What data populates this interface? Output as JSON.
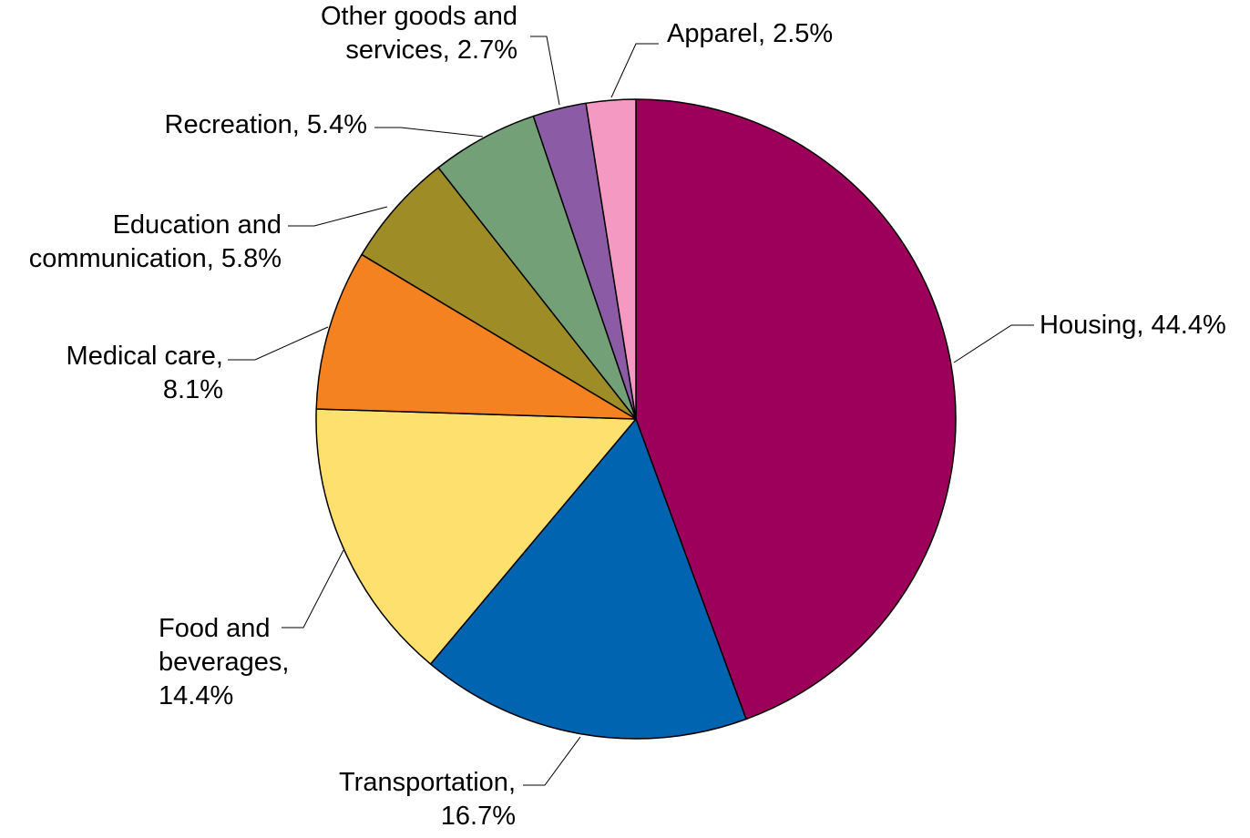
{
  "chart_data": {
    "type": "pie",
    "title": "",
    "start_angle": "12 o'clock, clockwise",
    "slices": [
      {
        "name": "Housing",
        "value": 44.4,
        "label_lines": [
          "Housing, 44.4%"
        ],
        "color": "#9c005a"
      },
      {
        "name": "Transportation",
        "value": 16.7,
        "label_lines": [
          "Transportation,",
          "16.7%"
        ],
        "color": "#0064b0"
      },
      {
        "name": "Food and beverages",
        "value": 14.4,
        "label_lines": [
          "Food and",
          "beverages,",
          "14.4%"
        ],
        "color": "#fee06e"
      },
      {
        "name": "Medical care",
        "value": 8.1,
        "label_lines": [
          "Medical care,",
          "8.1%"
        ],
        "color": "#f58220"
      },
      {
        "name": "Education and communication",
        "value": 5.8,
        "label_lines": [
          "Education and",
          "communication, 5.8%"
        ],
        "color": "#9e8c26"
      },
      {
        "name": "Recreation",
        "value": 5.4,
        "label_lines": [
          "Recreation, 5.4%"
        ],
        "color": "#74a077"
      },
      {
        "name": "Other goods and services",
        "value": 2.7,
        "label_lines": [
          "Other goods and",
          "services, 2.7%"
        ],
        "color": "#8b5ca5"
      },
      {
        "name": "Apparel",
        "value": 2.5,
        "label_lines": [
          "Apparel, 2.5%"
        ],
        "color": "#f49ac2"
      }
    ]
  }
}
